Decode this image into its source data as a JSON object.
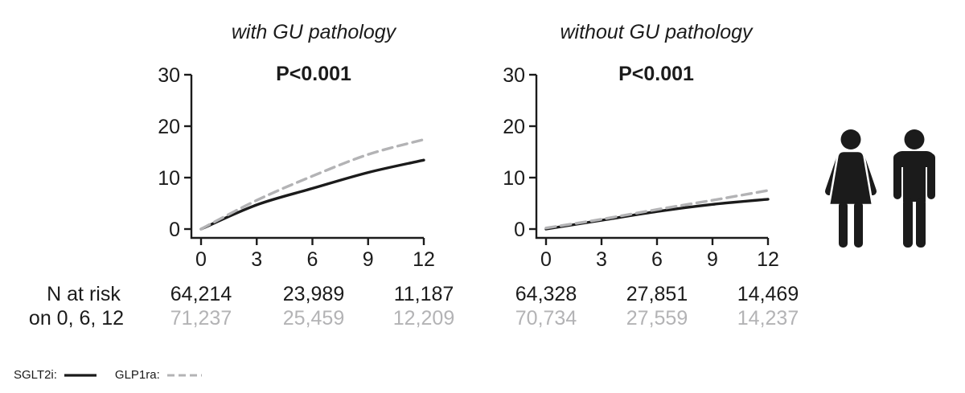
{
  "figure": {
    "background": "#ffffff",
    "colors": {
      "sglt2i": "#1b1b1b",
      "glp1ra": "#b3b3b5",
      "text": "#1b1b1b"
    }
  },
  "chart_data": [
    {
      "type": "line",
      "title": "with GU pathology",
      "pvalue": "P<0.001",
      "xlabel": "",
      "ylabel": "",
      "xlim": [
        0,
        12
      ],
      "ylim": [
        0,
        30
      ],
      "xticks": [
        0,
        3,
        6,
        9,
        12
      ],
      "yticks": [
        0,
        10,
        20,
        30
      ],
      "grid": false,
      "x": [
        0,
        3,
        6,
        9,
        12
      ],
      "series": [
        {
          "name": "SGLT2i",
          "style": "solid",
          "color": "#1b1b1b",
          "values": [
            0,
            4.7,
            7.9,
            11.0,
            13.4
          ]
        },
        {
          "name": "GLP1ra",
          "style": "dashed",
          "color": "#b3b3b5",
          "values": [
            0,
            5.6,
            10.3,
            14.5,
            17.4
          ]
        }
      ],
      "n_at_risk": {
        "times": [
          0,
          6,
          12
        ],
        "SGLT2i": [
          "64,214",
          "23,989",
          "11,187"
        ],
        "GLP1ra": [
          "71,237",
          "25,459",
          "12,209"
        ]
      }
    },
    {
      "type": "line",
      "title": "without GU pathology",
      "pvalue": "P<0.001",
      "xlabel": "",
      "ylabel": "",
      "xlim": [
        0,
        12
      ],
      "ylim": [
        0,
        30
      ],
      "xticks": [
        0,
        3,
        6,
        9,
        12
      ],
      "yticks": [
        0,
        10,
        20,
        30
      ],
      "grid": false,
      "x": [
        0,
        3,
        6,
        9,
        12
      ],
      "series": [
        {
          "name": "SGLT2i",
          "style": "solid",
          "color": "#1b1b1b",
          "values": [
            0,
            1.7,
            3.4,
            4.8,
            5.8
          ]
        },
        {
          "name": "GLP1ra",
          "style": "dashed",
          "color": "#b3b3b5",
          "values": [
            0.2,
            1.9,
            3.8,
            5.6,
            7.5
          ]
        }
      ],
      "n_at_risk": {
        "times": [
          0,
          6,
          12
        ],
        "SGLT2i": [
          "64,328",
          "27,851",
          "14,469"
        ],
        "GLP1ra": [
          "70,734",
          "27,559",
          "14,237"
        ]
      }
    }
  ],
  "risk_label": {
    "line1": "N at risk",
    "line2": "on 0, 6, 12"
  },
  "legend": {
    "position": "bottom-left",
    "items": [
      {
        "label": "SGLT2i:",
        "style": "solid",
        "color": "#1b1b1b"
      },
      {
        "label": "GLP1ra:",
        "style": "dashed",
        "color": "#b3b3b5"
      }
    ]
  },
  "icons": [
    {
      "name": "woman-icon"
    },
    {
      "name": "man-icon"
    }
  ]
}
